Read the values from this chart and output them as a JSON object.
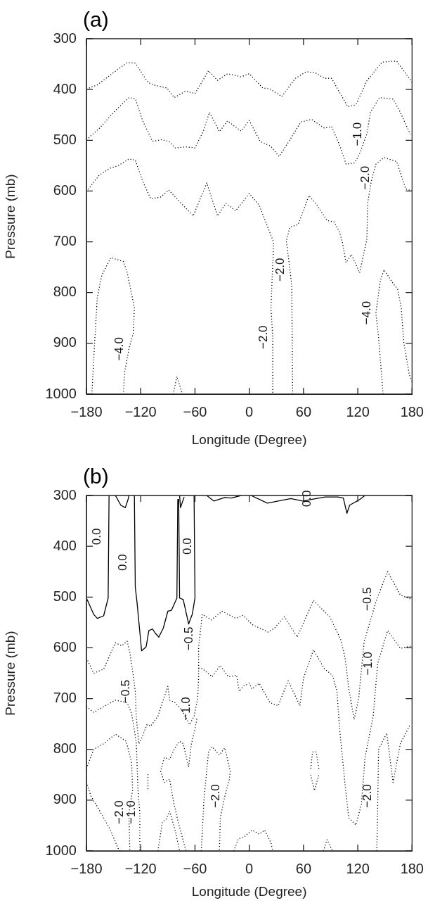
{
  "chart_data": [
    {
      "type": "line",
      "title": "(a)",
      "xlabel": "Longitude (Degree)",
      "ylabel": "Pressure (mb)",
      "legend": false,
      "grid": false,
      "marker": "none",
      "xlim": [
        -180,
        180
      ],
      "xticks": [
        -180,
        -120,
        -60,
        0,
        60,
        120,
        180
      ],
      "ylim": [
        1000,
        300
      ],
      "yticks": [
        300,
        400,
        500,
        600,
        700,
        800,
        900,
        1000
      ],
      "series": [
        {
          "color": "#000000",
          "line_style": "dotted",
          "x": [
            -180,
            -168,
            -148,
            -135,
            -126,
            -112,
            -106,
            -91,
            -83,
            -70,
            -60,
            -45,
            -35,
            -24,
            -9,
            0,
            15,
            23,
            36,
            51,
            63,
            73,
            83,
            91,
            109,
            118,
            130,
            147,
            163,
            178,
            180
          ],
          "values": [
            399,
            391,
            364,
            347,
            348,
            386,
            391,
            397,
            416,
            403,
            408,
            363,
            382,
            369,
            375,
            369,
            397,
            399,
            414,
            378,
            365,
            367,
            378,
            378,
            434,
            430,
            383,
            346,
            344,
            381,
            386
          ]
        },
        {
          "color": "#000000",
          "line_style": "dotted",
          "x": [
            -180,
            -166,
            -150,
            -133,
            -126,
            -118,
            -107,
            -97,
            -89,
            -82,
            -70,
            -60,
            -51,
            -44,
            -33,
            -24,
            -9,
            0,
            12,
            24,
            33,
            45,
            57,
            69,
            83,
            91,
            100,
            107,
            116,
            121,
            130,
            134,
            144,
            159,
            167,
            178
          ],
          "values": [
            499,
            477,
            445,
            416,
            418,
            461,
            502,
            499,
            502,
            515,
            513,
            515,
            483,
            445,
            483,
            462,
            482,
            461,
            502,
            512,
            532,
            499,
            464,
            459,
            476,
            473,
            510,
            547,
            545,
            531,
            488,
            445,
            416,
            419,
            445,
            488
          ]
        },
        {
          "color": "#000000",
          "line_style": "dotted",
          "x": [
            -180,
            -166,
            -154,
            -145,
            -133,
            -126,
            -118,
            -109,
            -98,
            -89,
            -79,
            -62,
            -47,
            -35,
            -26,
            -15,
            0,
            11,
            20,
            27,
            24,
            26,
            26
          ],
          "values": [
            601,
            569,
            555,
            550,
            537,
            539,
            580,
            615,
            612,
            598,
            617,
            649,
            584,
            649,
            624,
            639,
            605,
            628,
            669,
            701,
            830,
            888,
            1000
          ]
        },
        {
          "color": "#000000",
          "line_style": "dotted",
          "x": [
            48,
            47,
            45,
            41,
            45,
            54,
            66,
            75,
            86,
            94,
            100,
            103,
            107,
            113,
            122,
            130,
            131,
            135,
            140,
            149,
            163,
            173,
            180
          ],
          "values": [
            1000,
            787,
            755,
            698,
            671,
            666,
            609,
            628,
            658,
            661,
            682,
            701,
            741,
            725,
            761,
            696,
            623,
            580,
            547,
            534,
            542,
            596,
            600
          ]
        },
        {
          "color": "#000000",
          "line_style": "dotted",
          "x": [
            -174,
            -171,
            -168,
            -163,
            -153,
            -139,
            -135,
            -127,
            -128,
            -133,
            -138,
            -139
          ],
          "values": [
            1000,
            900,
            809,
            766,
            731,
            739,
            760,
            830,
            878,
            911,
            959,
            1000
          ]
        },
        {
          "color": "#000000",
          "line_style": "dotted",
          "x": [
            -84,
            -80,
            -74
          ],
          "values": [
            1000,
            965,
            1000
          ]
        },
        {
          "color": "#000000",
          "line_style": "dotted",
          "x": [
            148,
            143,
            140,
            145,
            149,
            159,
            164,
            168,
            171,
            177,
            180
          ],
          "values": [
            1000,
            889,
            840,
            776,
            755,
            782,
            793,
            830,
            900,
            962,
            975
          ]
        }
      ],
      "annotations": [
        {
          "text": "−1.0",
          "x": 130,
          "y": 488
        },
        {
          "text": "−2.0",
          "x": 139,
          "y": 574
        },
        {
          "text": "−2.0",
          "x": 45,
          "y": 755
        },
        {
          "text": "−2.0",
          "x": 26,
          "y": 888
        },
        {
          "text": "−4.0",
          "x": -133,
          "y": 911
        },
        {
          "text": "−4.0",
          "x": 140,
          "y": 840
        }
      ]
    },
    {
      "type": "line",
      "title": "(b)",
      "xlabel": "Longitude (Degree)",
      "ylabel": "Pressure (mb)",
      "legend": false,
      "grid": false,
      "marker": "none",
      "xlim": [
        -180,
        180
      ],
      "xticks": [
        -180,
        -120,
        -60,
        0,
        60,
        120,
        180
      ],
      "ylim": [
        1000,
        300
      ],
      "yticks": [
        300,
        400,
        500,
        600,
        700,
        800,
        900,
        1000
      ],
      "series": [
        {
          "color": "#000000",
          "line_style": "solid",
          "x": [
            -180,
            -172,
            -168,
            -161,
            -156,
            -155
          ],
          "values": [
            502,
            534,
            542,
            537,
            502,
            300
          ]
        },
        {
          "color": "#000000",
          "line_style": "solid",
          "x": [
            -148,
            -142,
            -137,
            -134,
            -133
          ],
          "values": [
            300,
            319,
            324,
            308,
            300
          ]
        },
        {
          "color": "#000000",
          "line_style": "solid",
          "x": [
            -127,
            -126,
            -124,
            -119,
            -114,
            -111,
            -107,
            -104,
            -100,
            -95,
            -90,
            -86,
            -80,
            -79,
            -78,
            -77,
            -73,
            -67,
            -63,
            -60,
            -61
          ],
          "values": [
            300,
            480,
            512,
            606,
            598,
            566,
            563,
            571,
            579,
            561,
            528,
            526,
            502,
            308,
            308,
            502,
            505,
            553,
            534,
            502,
            300
          ]
        },
        {
          "color": "#000000",
          "line_style": "solid",
          "x": [
            -77,
            -76,
            -72
          ],
          "values": [
            300,
            324,
            303
          ]
        },
        {
          "color": "#000000",
          "line_style": "solid",
          "x": [
            -47,
            -39,
            -27,
            -20,
            -9
          ],
          "values": [
            300,
            311,
            304,
            305,
            300
          ]
        },
        {
          "color": "#000000",
          "line_style": "solid",
          "x": [
            2,
            20,
            46,
            59,
            74,
            84,
            98,
            104,
            108,
            111,
            122,
            128
          ],
          "values": [
            300,
            315,
            306,
            311,
            306,
            303,
            303,
            305,
            335,
            319,
            308,
            300
          ]
        },
        {
          "color": "#000000",
          "line_style": "dotted",
          "x": [
            -180,
            -172,
            -161,
            -148,
            -141,
            -135,
            -132,
            -128,
            -126,
            -125,
            -122,
            -119,
            -113,
            -109,
            -101,
            -94,
            -90,
            -88,
            -82,
            -74,
            -66,
            -61,
            -57,
            -56,
            -56,
            -52,
            -42,
            -30,
            -15,
            -7,
            4,
            21,
            28,
            39,
            53,
            71,
            89,
            101,
            106,
            110,
            116,
            121,
            127,
            136,
            141,
            153,
            167,
            180
          ],
          "values": [
            620,
            650,
            642,
            590,
            596,
            587,
            609,
            658,
            686,
            735,
            789,
            778,
            751,
            754,
            735,
            697,
            676,
            703,
            708,
            724,
            751,
            735,
            700,
            660,
            600,
            534,
            545,
            528,
            542,
            536,
            555,
            569,
            561,
            539,
            579,
            507,
            539,
            583,
            620,
            680,
            741,
            700,
            588,
            534,
            504,
            450,
            496,
            505
          ]
        },
        {
          "color": "#000000",
          "line_style": "dotted",
          "x": [
            -56,
            -52,
            -41,
            -32,
            -23,
            -14,
            -11,
            -7,
            0,
            3,
            11,
            23,
            32,
            43,
            56,
            60,
            71,
            83,
            92,
            97,
            100,
            106,
            110,
            118,
            124,
            128,
            137,
            142,
            153,
            167,
            180
          ],
          "values": [
            640,
            641,
            657,
            635,
            657,
            654,
            686,
            676,
            670,
            681,
            670,
            708,
            714,
            665,
            714,
            660,
            604,
            641,
            654,
            686,
            762,
            870,
            935,
            949,
            908,
            816,
            735,
            631,
            566,
            601,
            596
          ]
        },
        {
          "color": "#000000",
          "line_style": "dotted",
          "x": [
            -180,
            -172,
            -161,
            -148,
            -135,
            -130,
            -127,
            -125,
            -124,
            -123,
            -121,
            -121
          ],
          "values": [
            716,
            727,
            716,
            703,
            708,
            730,
            762,
            786,
            830,
            880,
            924,
            1000
          ]
        },
        {
          "color": "#000000",
          "line_style": "dotted",
          "x": [
            -180,
            -172,
            -161,
            -148,
            -136,
            -130,
            -129,
            -133,
            -132
          ],
          "values": [
            838,
            800,
            789,
            770,
            784,
            827,
            881,
            924,
            1000
          ]
        },
        {
          "color": "#000000",
          "line_style": "dotted",
          "x": [
            -180,
            -175,
            -166,
            -154,
            -145,
            -143
          ],
          "values": [
            865,
            892,
            919,
            957,
            995,
            1000
          ]
        },
        {
          "color": "#000000",
          "line_style": "dotted",
          "x": [
            -112,
            -112
          ],
          "values": [
            849,
            881
          ]
        },
        {
          "color": "#000000",
          "line_style": "dotted",
          "x": [
            -58,
            -60,
            -64,
            -67,
            -73,
            -77,
            -83,
            -88,
            -94,
            -98,
            -94,
            -88,
            -84,
            -79,
            -73,
            -70
          ],
          "values": [
            740,
            760,
            790,
            835,
            789,
            784,
            800,
            820,
            816,
            843,
            865,
            859,
            900,
            940,
            980,
            1000
          ]
        },
        {
          "color": "#000000",
          "line_style": "dotted",
          "x": [
            -101,
            -96,
            -92,
            -88,
            -82,
            -77
          ],
          "values": [
            1000,
            943,
            938,
            922,
            959,
            1000
          ]
        },
        {
          "color": "#000000",
          "line_style": "dotted",
          "x": [
            -53,
            -50,
            -45,
            -41,
            -33,
            -27,
            -21,
            -22,
            -27,
            -32,
            -33
          ],
          "values": [
            1000,
            897,
            805,
            795,
            811,
            797,
            843,
            859,
            892,
            935,
            1000
          ]
        },
        {
          "color": "#000000",
          "line_style": "dotted",
          "x": [
            -17,
            -12,
            -6,
            3,
            11,
            17,
            24,
            26
          ],
          "values": [
            1000,
            976,
            973,
            959,
            967,
            959,
            984,
            1000
          ]
        },
        {
          "color": "#000000",
          "line_style": "dotted",
          "x": [
            68,
            70,
            74,
            77
          ],
          "values": [
            838,
            805,
            805,
            838
          ]
        },
        {
          "color": "#000000",
          "line_style": "dotted",
          "x": [
            68,
            72,
            77
          ],
          "values": [
            850,
            881,
            850
          ]
        },
        {
          "color": "#000000",
          "line_style": "dotted",
          "x": [
            82,
            86,
            92
          ],
          "values": [
            1000,
            978,
            1000
          ]
        },
        {
          "color": "#000000",
          "line_style": "dotted",
          "x": [
            141,
            142,
            143,
            152,
            159,
            167,
            178
          ],
          "values": [
            1000,
            913,
            800,
            768,
            865,
            789,
            751
          ]
        }
      ],
      "annotations": [
        {
          "text": "0.0",
          "x": -158,
          "y": 381
        },
        {
          "text": "0.0",
          "x": -129,
          "y": 432
        },
        {
          "text": "0.0",
          "x": -58,
          "y": 400
        },
        {
          "text": "0.0",
          "x": 74,
          "y": 306
        },
        {
          "text": "−0.5",
          "x": -56,
          "y": 582
        },
        {
          "text": "−0.5",
          "x": 141,
          "y": 504
        },
        {
          "text": "−0.5",
          "x": -126,
          "y": 686
        },
        {
          "text": "−1.0",
          "x": -59,
          "y": 720
        },
        {
          "text": "−1.0",
          "x": 142,
          "y": 631
        },
        {
          "text": "−1.0",
          "x": -120,
          "y": 924
        },
        {
          "text": "−2.0",
          "x": -133,
          "y": 924
        },
        {
          "text": "−2.0",
          "x": -27,
          "y": 892
        },
        {
          "text": "−2.0",
          "x": 141,
          "y": 892
        }
      ]
    }
  ]
}
